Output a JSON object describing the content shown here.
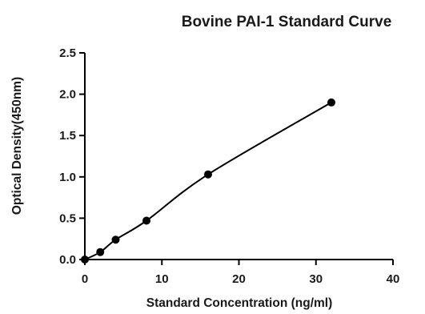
{
  "chart_data": {
    "type": "scatter",
    "title": "Bovine PAI-1 Standard Curve",
    "xlabel": "Standard Concentration (ng/ml)",
    "ylabel": "Optical Density(450nm)",
    "xlim": [
      0,
      40
    ],
    "ylim": [
      0,
      2.5
    ],
    "x_ticks": [
      "0",
      "10",
      "20",
      "30",
      "40"
    ],
    "y_ticks": [
      "0.0",
      "0.5",
      "1.0",
      "1.5",
      "2.0",
      "2.5"
    ],
    "grid": false,
    "legend": "none",
    "series": [
      {
        "x": [
          0,
          2,
          4,
          8,
          16,
          32
        ],
        "y": [
          0.0,
          0.09,
          0.24,
          0.47,
          1.03,
          1.9
        ],
        "fit": "smooth curve",
        "color": "#000000"
      }
    ]
  }
}
